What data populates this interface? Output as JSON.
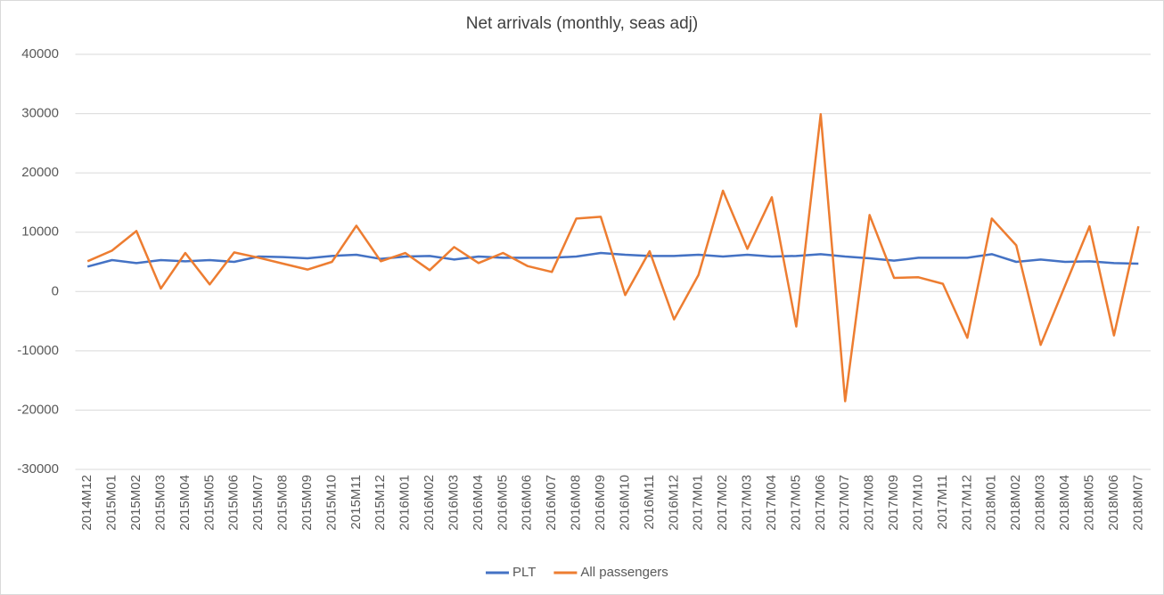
{
  "chart_data": {
    "type": "line",
    "title": "Net arrivals (monthly, seas adj)",
    "categories": [
      "2014M12",
      "2015M01",
      "2015M02",
      "2015M03",
      "2015M04",
      "2015M05",
      "2015M06",
      "2015M07",
      "2015M08",
      "2015M09",
      "2015M10",
      "2015M11",
      "2015M12",
      "2016M01",
      "2016M02",
      "2016M03",
      "2016M04",
      "2016M05",
      "2016M06",
      "2016M07",
      "2016M08",
      "2016M09",
      "2016M10",
      "2016M11",
      "2016M12",
      "2017M01",
      "2017M02",
      "2017M03",
      "2017M04",
      "2017M05",
      "2017M06",
      "2017M07",
      "2017M08",
      "2017M09",
      "2017M10",
      "2017M11",
      "2017M12",
      "2018M01",
      "2018M02",
      "2018M03",
      "2018M04",
      "2018M05",
      "2018M06",
      "2018M07"
    ],
    "series": [
      {
        "name": "PLT",
        "color": "#4472c4",
        "values": [
          4200,
          5300,
          4800,
          5300,
          5100,
          5300,
          5000,
          5900,
          5800,
          5600,
          6000,
          6200,
          5500,
          5900,
          6000,
          5400,
          5900,
          5700,
          5700,
          5700,
          5900,
          6500,
          6200,
          6000,
          6000,
          6200,
          5900,
          6200,
          5900,
          6000,
          6300,
          5900,
          5600,
          5200,
          5700,
          5700,
          5700,
          6300,
          5000,
          5400,
          5000,
          5100,
          4800,
          4700
        ]
      },
      {
        "name": "All passengers",
        "color": "#ed7d31",
        "values": [
          5100,
          6900,
          10200,
          500,
          6500,
          1200,
          6600,
          5700,
          4700,
          3700,
          5000,
          11100,
          5100,
          6500,
          3600,
          7500,
          4800,
          6500,
          4300,
          3300,
          12300,
          12600,
          -600,
          6800,
          -4700,
          2800,
          17000,
          7200,
          15900,
          -5900,
          29900,
          -18500,
          12900,
          2300,
          2400,
          1300,
          -7800,
          12300,
          7800,
          -9000,
          1000,
          11000,
          -7400,
          11000
        ]
      }
    ],
    "ylim": [
      -30000,
      40000
    ],
    "yticks": [
      -30000,
      -20000,
      -10000,
      0,
      10000,
      20000,
      30000,
      40000
    ],
    "grid": true,
    "legend": "bottom"
  }
}
